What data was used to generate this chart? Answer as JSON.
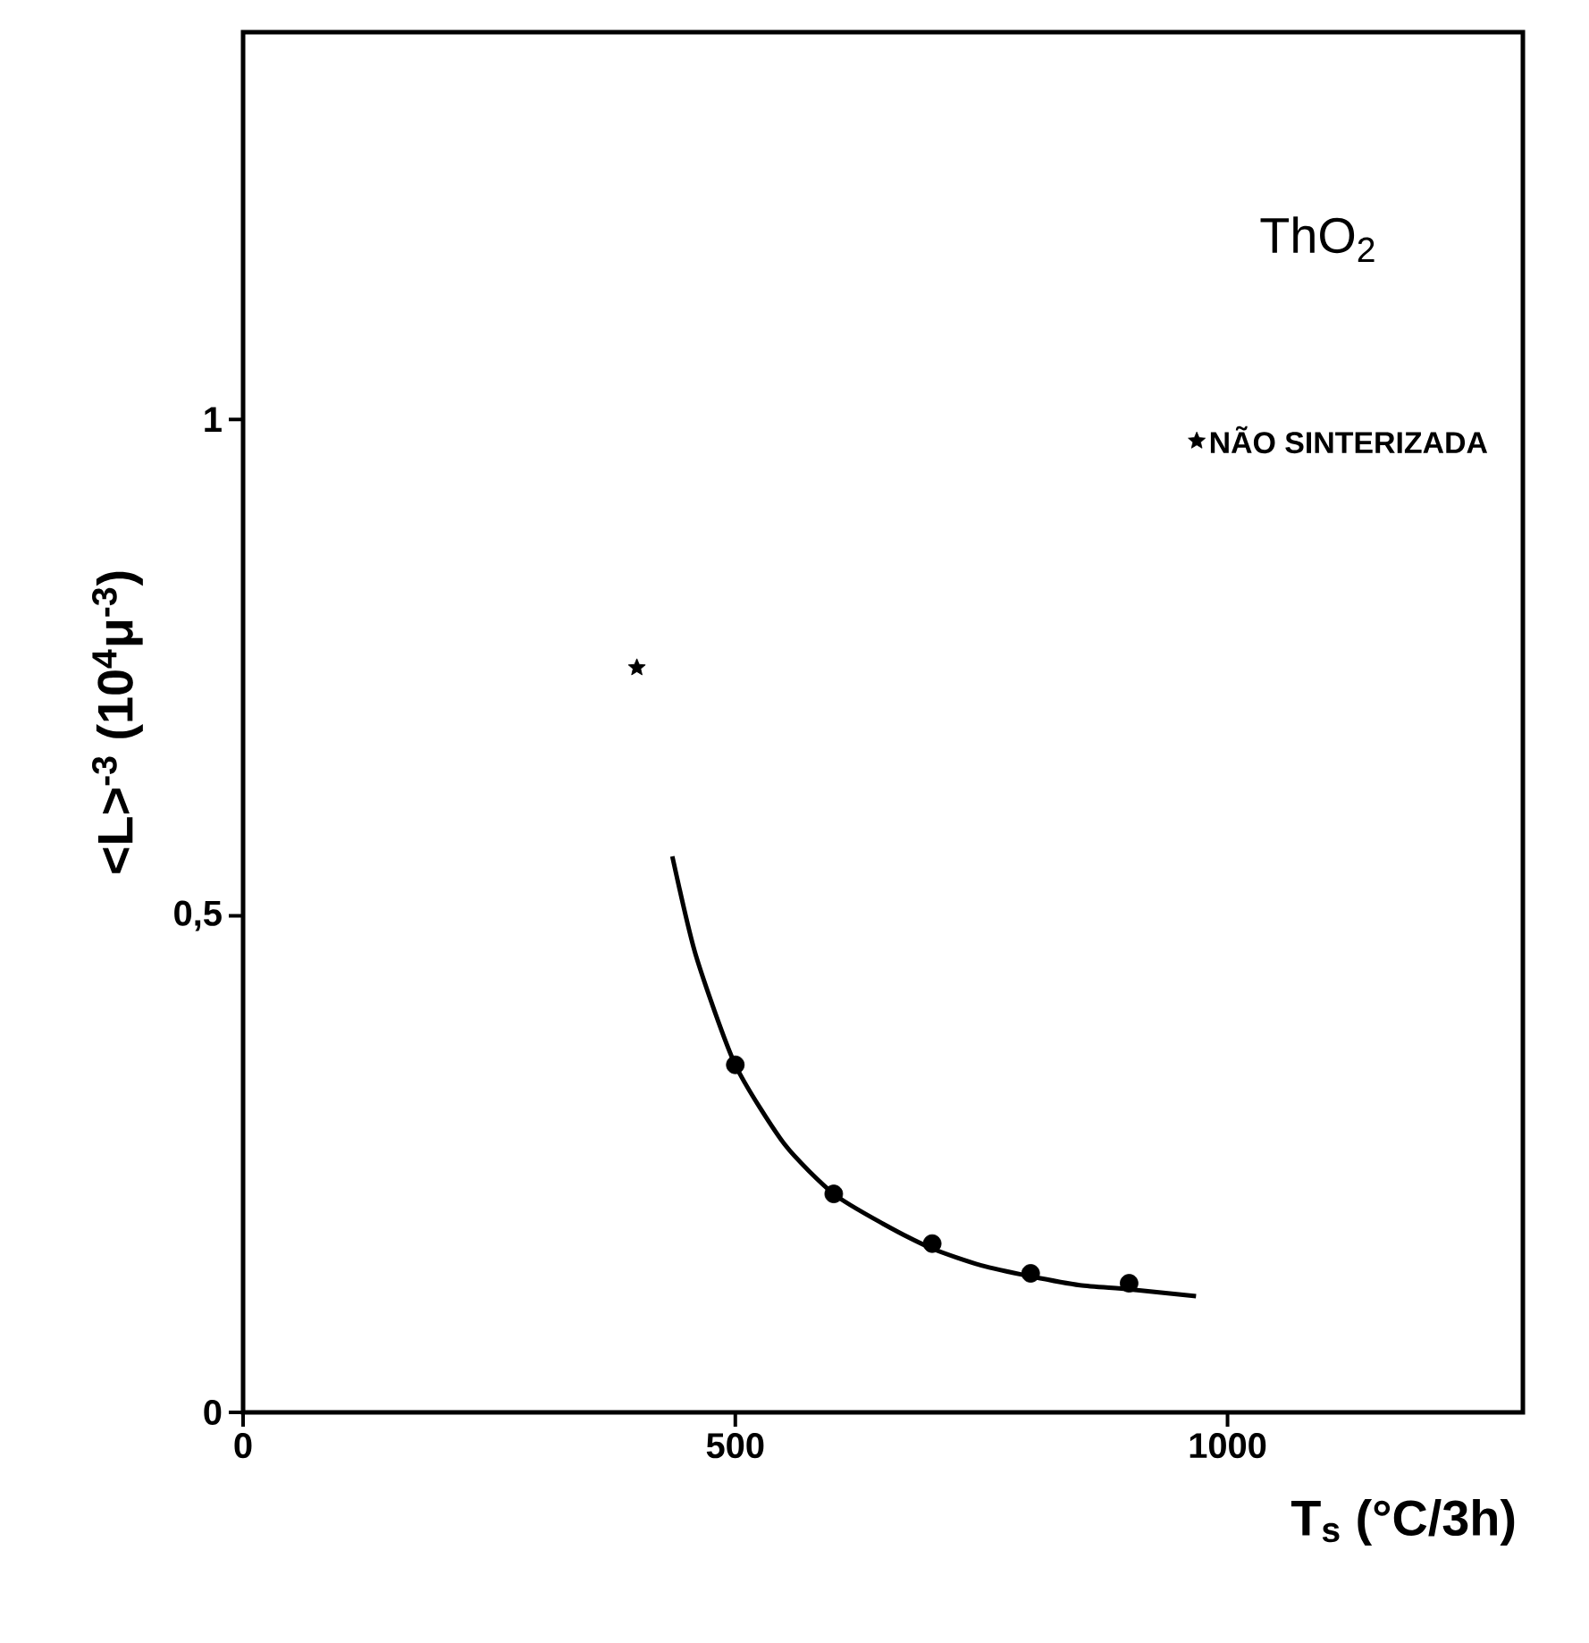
{
  "chart_data": {
    "type": "scatter",
    "xlabel": "T$_{s}$ (°C/3h)",
    "ylabel": "<L>$^{-3}$ (10$^{4}$μ$^{-3}$)",
    "annotations": [
      "ThO$_{2}$"
    ],
    "xlim": [
      0,
      1300
    ],
    "ylim": [
      0,
      1.39
    ],
    "xticks": [
      0,
      500,
      1000
    ],
    "yticks": [
      0,
      {
        "value": 0.5,
        "label": "0,5"
      },
      1
    ],
    "grid": false,
    "legend": "top right",
    "series": [
      {
        "color": "#000000",
        "marker": "circle",
        "x": [
          500,
          600,
          700,
          800,
          900
        ],
        "values": [
          0.35,
          0.22,
          0.17,
          0.14,
          0.13
        ]
      },
      {
        "type": "line",
        "color": "#000000",
        "marker": "none",
        "line_style": "solid",
        "x": [
          436,
          460,
          500,
          550,
          600,
          650,
          700,
          750,
          800,
          850,
          900,
          968
        ],
        "values": [
          0.56,
          0.46,
          0.35,
          0.27,
          0.22,
          0.19,
          0.165,
          0.148,
          0.137,
          0.128,
          0.124,
          0.117
        ]
      },
      {
        "type": "scatter",
        "name": "NÃO SINTERIZADA",
        "color": "#000000",
        "marker": "star",
        "x": [
          400
        ],
        "values": [
          0.75
        ]
      }
    ]
  }
}
